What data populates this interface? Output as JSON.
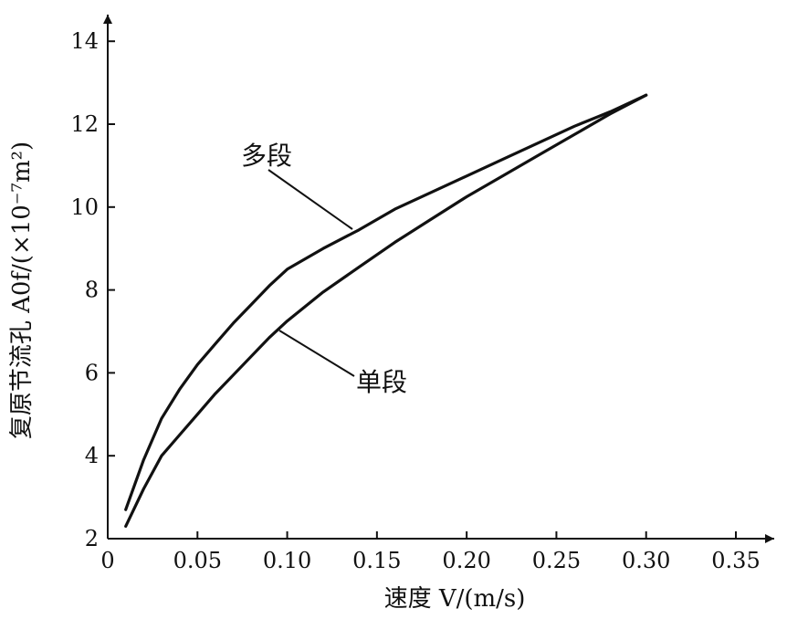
{
  "chart_data": {
    "type": "line",
    "xlabel": "速度 V/(m/s)",
    "ylabel": "复原节流孔 A0f/(×10⁻⁷m²)",
    "xlim": [
      0,
      0.36
    ],
    "ylim": [
      2,
      15
    ],
    "x_ticks": [
      "0",
      "0.05",
      "0.10",
      "0.15",
      "0.20",
      "0.25",
      "0.30",
      "0.35"
    ],
    "y_ticks": [
      "2",
      "4",
      "6",
      "8",
      "10",
      "12",
      "14"
    ],
    "grid": false,
    "series": [
      {
        "name": "多段",
        "points": [
          [
            0.01,
            2.7
          ],
          [
            0.02,
            3.9
          ],
          [
            0.03,
            4.9
          ],
          [
            0.04,
            5.6
          ],
          [
            0.05,
            6.2
          ],
          [
            0.06,
            6.7
          ],
          [
            0.07,
            7.2
          ],
          [
            0.08,
            7.65
          ],
          [
            0.09,
            8.1
          ],
          [
            0.1,
            8.5
          ],
          [
            0.12,
            9.0
          ],
          [
            0.14,
            9.45
          ],
          [
            0.16,
            9.95
          ],
          [
            0.18,
            10.35
          ],
          [
            0.2,
            10.75
          ],
          [
            0.22,
            11.15
          ],
          [
            0.24,
            11.55
          ],
          [
            0.26,
            11.95
          ],
          [
            0.28,
            12.3
          ],
          [
            0.3,
            12.7
          ]
        ]
      },
      {
        "name": "单段",
        "points": [
          [
            0.01,
            2.3
          ],
          [
            0.02,
            3.2
          ],
          [
            0.03,
            4.0
          ],
          [
            0.04,
            4.5
          ],
          [
            0.05,
            5.0
          ],
          [
            0.06,
            5.5
          ],
          [
            0.07,
            5.95
          ],
          [
            0.08,
            6.4
          ],
          [
            0.09,
            6.85
          ],
          [
            0.1,
            7.25
          ],
          [
            0.12,
            7.95
          ],
          [
            0.14,
            8.55
          ],
          [
            0.16,
            9.15
          ],
          [
            0.18,
            9.7
          ],
          [
            0.2,
            10.25
          ],
          [
            0.22,
            10.75
          ],
          [
            0.24,
            11.25
          ],
          [
            0.26,
            11.75
          ],
          [
            0.28,
            12.25
          ],
          [
            0.3,
            12.7
          ]
        ]
      }
    ]
  }
}
